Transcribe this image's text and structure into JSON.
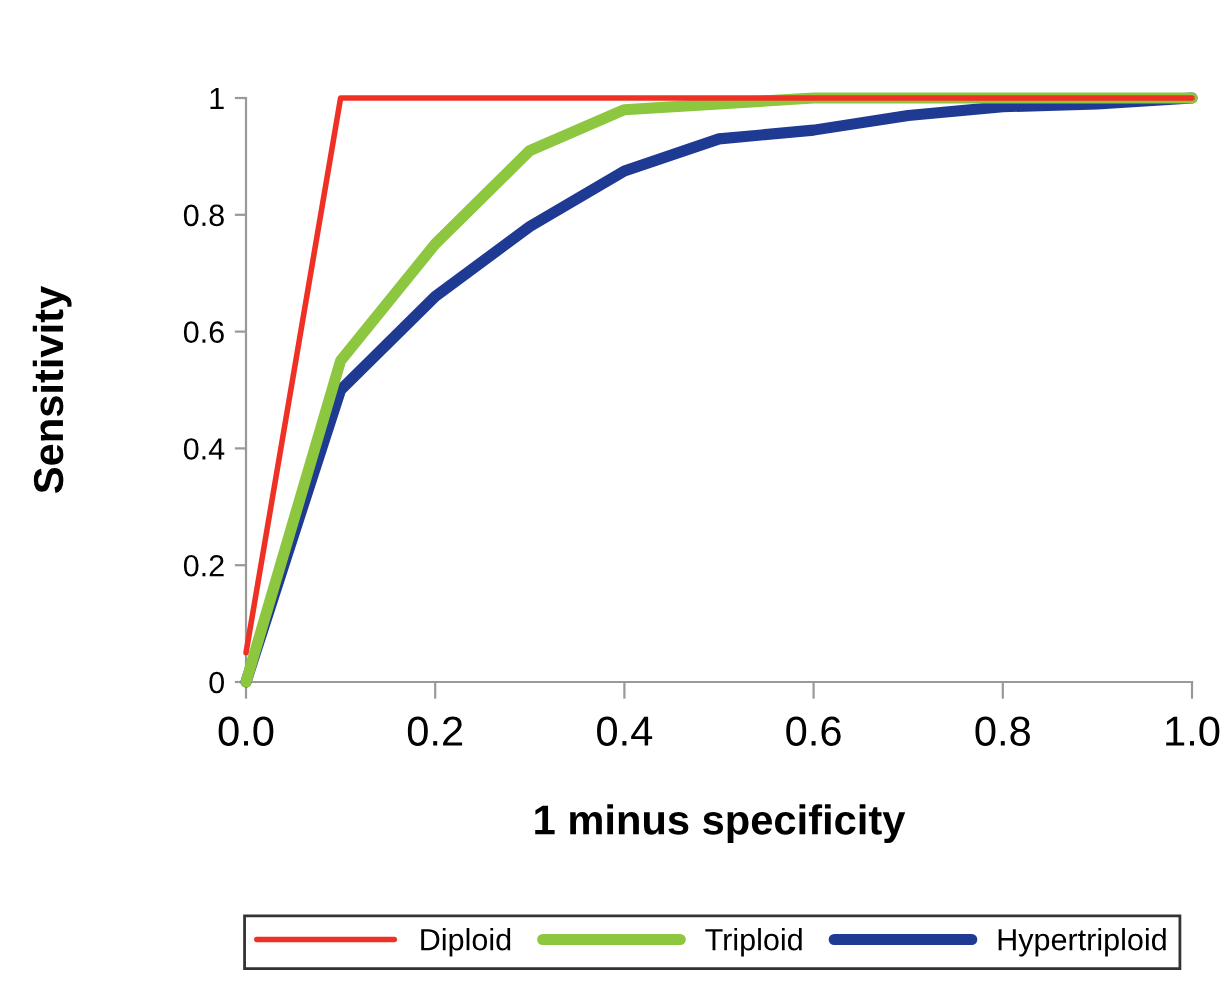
{
  "chart_data": {
    "type": "line",
    "xlabel": "1 minus specificity",
    "ylabel": "Sensitivity",
    "xlim": [
      0,
      1
    ],
    "ylim": [
      0,
      1
    ],
    "xticks": [
      {
        "value": 0,
        "label": "0.0"
      },
      0.2,
      0.4,
      0.6,
      0.8,
      {
        "value": 1,
        "label": "1.0"
      }
    ],
    "yticks": [
      0,
      0.2,
      0.4,
      0.6,
      0.8,
      1
    ],
    "grid": false,
    "legend": "bottom",
    "marker": "none",
    "line_style": "solid",
    "series": [
      {
        "name": "Diploid",
        "color": "#ee3124",
        "x": [
          0,
          0.1,
          0.5,
          1
        ],
        "values": [
          0.05,
          1,
          1,
          1
        ]
      },
      {
        "name": "Triploid",
        "color": "#8dc63f",
        "x": [
          0,
          0.1,
          0.2,
          0.3,
          0.4,
          0.5,
          0.6,
          0.7,
          0.8,
          0.9,
          1
        ],
        "values": [
          0,
          0.55,
          0.75,
          0.91,
          0.98,
          0.99,
          1,
          1,
          1,
          1,
          1
        ]
      },
      {
        "name": "Hypertriploid",
        "color": "#1f3a93",
        "x": [
          0,
          0.1,
          0.2,
          0.3,
          0.4,
          0.5,
          0.6,
          0.7,
          0.8,
          0.9,
          1
        ],
        "values": [
          0,
          0.5,
          0.66,
          0.78,
          0.875,
          0.93,
          0.945,
          0.97,
          0.985,
          0.99,
          1
        ]
      }
    ]
  }
}
